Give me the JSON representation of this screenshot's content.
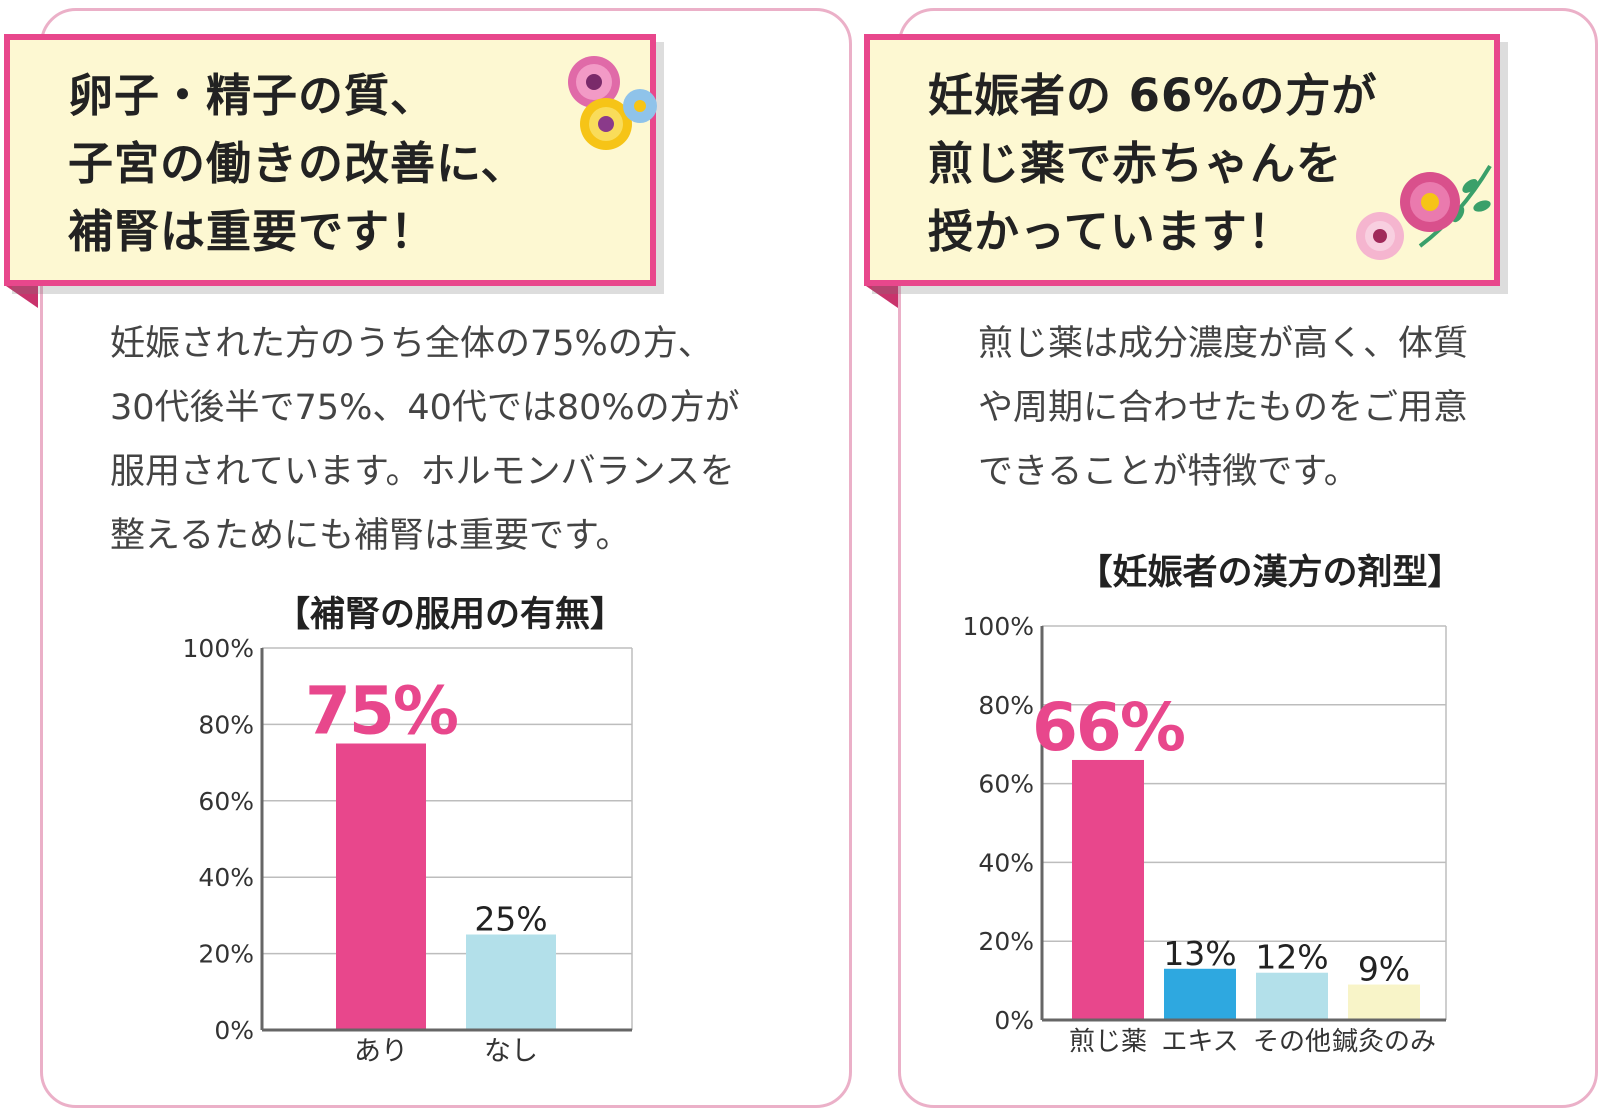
{
  "left_panel": {
    "headline": [
      "卵子・精子の質、",
      "子宮の働きの改善に、",
      "補腎は重要です！"
    ],
    "body": [
      "妊娠された方のうち全体の75%の方、",
      "30代後半で75%、40代では80%の方が",
      "服用されています。ホルモンバランスを",
      "整えるためにも補腎は重要です。"
    ]
  },
  "right_panel": {
    "headline": [
      "妊娠者の 66%の方が",
      "煎じ薬で赤ちゃんを",
      "授かっています！"
    ],
    "body": [
      "煎じ薬は成分濃度が高く、体質",
      "や周期に合わせたものをご用意",
      "できることが特徴です。"
    ]
  },
  "chart_data": [
    {
      "type": "bar",
      "title": "【補腎の服用の有無】",
      "categories": [
        "あり",
        "なし"
      ],
      "values": [
        75,
        25
      ],
      "value_labels": [
        "75%",
        "25%"
      ],
      "colors": [
        "#e8478c",
        "#b3e0ea"
      ],
      "highlight_index": 0,
      "ylim": [
        0,
        100
      ],
      "yticks": [
        "0%",
        "20%",
        "40%",
        "60%",
        "80%",
        "100%"
      ],
      "grid": true
    },
    {
      "type": "bar",
      "title": "【妊娠者の漢方の剤型】",
      "categories": [
        "煎じ薬",
        "エキス",
        "その他",
        "鍼灸のみ"
      ],
      "values": [
        66,
        13,
        12,
        9
      ],
      "value_labels": [
        "66%",
        "13%",
        "12%",
        "9%"
      ],
      "colors": [
        "#e8478c",
        "#2ea8e0",
        "#b3e0ea",
        "#f8f4c8"
      ],
      "highlight_index": 0,
      "ylim": [
        0,
        100
      ],
      "yticks": [
        "0%",
        "20%",
        "40%",
        "60%",
        "80%",
        "100%"
      ],
      "grid": true
    }
  ],
  "colors": {
    "card_border": "#ebb0c8",
    "banner_border": "#e8478c",
    "banner_fill": "#fdf8d2",
    "accent_pink": "#e8478c"
  },
  "decorations": [
    "flower-bouquet-icon",
    "flower-bouquet-icon"
  ]
}
